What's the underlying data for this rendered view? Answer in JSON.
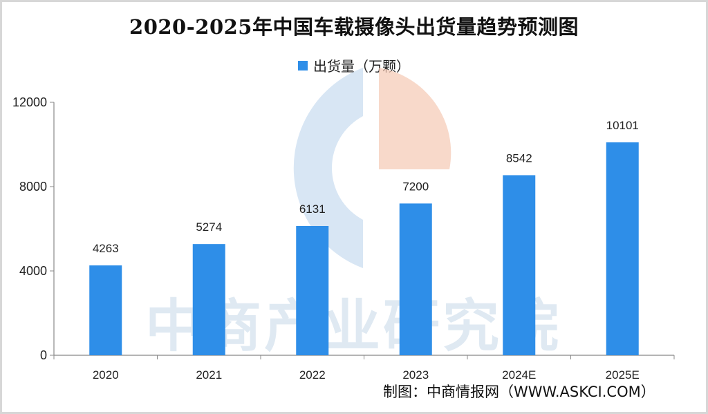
{
  "colors": {
    "bar": "#2e8ee8",
    "axis": "#888888",
    "watermark_blue": "#c7dbef",
    "watermark_orange": "#f5c9b3"
  },
  "source": "制图：中商情报网（WWW.ASKCI.COM）",
  "watermark": {
    "text": "中商产业研究院"
  },
  "chart_data": {
    "type": "bar",
    "title": "2020-2025年中国车载摄像头出货量趋势预测图",
    "categories": [
      "2020",
      "2021",
      "2022",
      "2023",
      "2024E",
      "2025E"
    ],
    "series": [
      {
        "name": "出货量（万颗）",
        "values": [
          4263,
          5274,
          6131,
          7200,
          8542,
          10101
        ]
      }
    ],
    "data_labels": [
      "4263",
      "5274",
      "6131",
      "7200",
      "8542",
      "10101"
    ],
    "y_ticks": [
      "0",
      "4000",
      "8000",
      "12000"
    ],
    "y_tick_values": [
      0,
      4000,
      8000,
      12000
    ],
    "ylim": [
      0,
      12000
    ],
    "grid": false,
    "legend_position": "top-center"
  }
}
